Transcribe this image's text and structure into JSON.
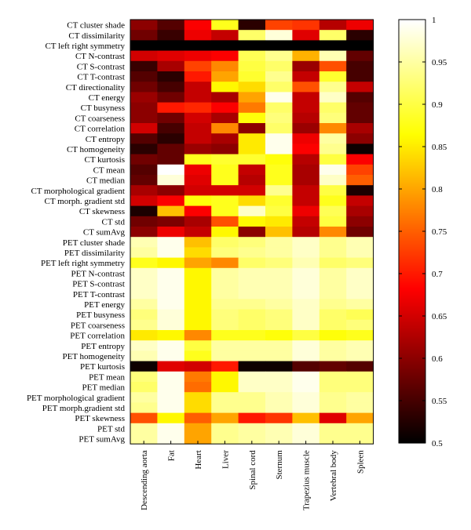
{
  "chart_data": {
    "type": "heatmap",
    "colormap": "hot",
    "colorbar": {
      "min": 0.5,
      "max": 1,
      "ticks": [
        "0.5",
        "0.55",
        "0.6",
        "0.65",
        "0.7",
        "0.75",
        "0.8",
        "0.85",
        "0.9",
        "0.95",
        "1"
      ]
    },
    "columns": [
      "Descending aorta",
      "Fat",
      "Heart",
      "Liver",
      "Spinal cord",
      "Sternum",
      "Trapezius muscle",
      "Vertebral body",
      "Spleen"
    ],
    "rows": [
      "CT cluster shade",
      "CT dissimilarity",
      "CT left right symmetry",
      "CT N-contrast",
      "CT S-contrast",
      "CT T-contrast",
      "CT directionality",
      "CT energy",
      "CT busyness",
      "CT coarseness",
      "CT correlation",
      "CT entropy",
      "CT homogeneity",
      "CT kurtosis",
      "CT mean",
      "CT median",
      "CT morphological gradient",
      "CT morph. gradient std",
      "CT skewness",
      "CT std",
      "CT sumAvg",
      "PET cluster shade",
      "PET dissimilarity",
      "PET left right symmetry",
      "PET N-contrast",
      "PET S-contrast",
      "PET T-contrast",
      "PET energy",
      "PET busyness",
      "PET coarseness",
      "PET correlation",
      "PET entropy",
      "PET homogeneity",
      "PET kurtosis",
      "PET mean",
      "PET median",
      "PET morphological gradient",
      "PET morph.gradient std",
      "PET skewness",
      "PET std",
      "PET sumAvg"
    ],
    "values": [
      [
        0.6,
        0.56,
        0.68,
        0.88,
        0.53,
        0.73,
        0.72,
        0.63,
        0.67
      ],
      [
        0.58,
        0.54,
        0.67,
        0.64,
        0.92,
        0.98,
        0.66,
        0.92,
        0.53
      ],
      [
        0.5,
        0.5,
        0.5,
        0.5,
        0.5,
        0.5,
        0.5,
        0.5,
        0.5
      ],
      [
        0.65,
        0.66,
        0.67,
        0.68,
        0.91,
        0.94,
        0.81,
        0.96,
        0.57
      ],
      [
        0.54,
        0.62,
        0.73,
        0.78,
        0.9,
        0.92,
        0.61,
        0.74,
        0.55
      ],
      [
        0.56,
        0.53,
        0.7,
        0.8,
        0.89,
        0.94,
        0.64,
        0.89,
        0.55
      ],
      [
        0.58,
        0.55,
        0.64,
        0.86,
        0.84,
        0.92,
        0.74,
        0.94,
        0.64
      ],
      [
        0.61,
        0.58,
        0.64,
        0.62,
        0.8,
        0.99,
        0.64,
        0.97,
        0.56
      ],
      [
        0.6,
        0.7,
        0.71,
        0.68,
        0.77,
        0.92,
        0.64,
        0.92,
        0.57
      ],
      [
        0.6,
        0.58,
        0.65,
        0.62,
        0.87,
        0.93,
        0.63,
        0.93,
        0.57
      ],
      [
        0.65,
        0.55,
        0.64,
        0.78,
        0.6,
        0.92,
        0.61,
        0.78,
        0.62
      ],
      [
        0.56,
        0.53,
        0.64,
        0.62,
        0.85,
        0.99,
        0.67,
        0.95,
        0.6
      ],
      [
        0.53,
        0.57,
        0.61,
        0.6,
        0.85,
        0.99,
        0.68,
        0.94,
        0.51
      ],
      [
        0.58,
        0.57,
        0.88,
        0.89,
        0.89,
        0.87,
        0.63,
        0.9,
        0.68
      ],
      [
        0.56,
        1.0,
        0.67,
        0.88,
        0.64,
        0.88,
        0.62,
        0.99,
        0.73
      ],
      [
        0.57,
        0.98,
        0.66,
        0.88,
        0.63,
        0.88,
        0.62,
        0.97,
        0.75
      ],
      [
        0.62,
        0.6,
        0.65,
        0.65,
        0.65,
        0.94,
        0.64,
        0.9,
        0.52
      ],
      [
        0.65,
        0.68,
        0.87,
        0.88,
        0.84,
        0.89,
        0.64,
        0.88,
        0.64
      ],
      [
        0.52,
        0.82,
        0.68,
        0.88,
        0.97,
        0.9,
        0.67,
        0.91,
        0.62
      ],
      [
        0.58,
        0.59,
        0.62,
        0.74,
        0.86,
        0.85,
        0.64,
        0.9,
        0.6
      ],
      [
        0.6,
        0.67,
        0.64,
        0.86,
        0.6,
        0.82,
        0.63,
        0.78,
        0.58
      ],
      [
        0.96,
        0.99,
        0.82,
        0.92,
        0.93,
        0.95,
        0.97,
        0.94,
        0.96
      ],
      [
        0.95,
        0.99,
        0.84,
        0.93,
        0.94,
        0.95,
        0.97,
        0.94,
        0.96
      ],
      [
        0.88,
        0.86,
        0.8,
        0.78,
        0.92,
        0.93,
        0.96,
        0.92,
        0.93
      ],
      [
        0.97,
        0.99,
        0.86,
        0.95,
        0.96,
        0.96,
        0.98,
        0.95,
        0.97
      ],
      [
        0.97,
        0.99,
        0.86,
        0.95,
        0.96,
        0.96,
        0.98,
        0.95,
        0.97
      ],
      [
        0.97,
        0.99,
        0.86,
        0.95,
        0.96,
        0.96,
        0.98,
        0.95,
        0.97
      ],
      [
        0.95,
        0.99,
        0.86,
        0.94,
        0.94,
        0.95,
        0.97,
        0.94,
        0.95
      ],
      [
        0.93,
        0.98,
        0.86,
        0.93,
        0.92,
        0.93,
        0.97,
        0.92,
        0.91
      ],
      [
        0.94,
        0.98,
        0.86,
        0.93,
        0.92,
        0.93,
        0.97,
        0.92,
        0.93
      ],
      [
        0.85,
        0.86,
        0.78,
        0.88,
        0.88,
        0.87,
        0.9,
        0.87,
        0.88
      ],
      [
        0.97,
        0.99,
        0.9,
        0.95,
        0.95,
        0.95,
        0.98,
        0.95,
        0.96
      ],
      [
        0.96,
        0.99,
        0.88,
        0.95,
        0.95,
        0.95,
        0.98,
        0.95,
        0.96
      ],
      [
        0.51,
        0.66,
        0.65,
        0.7,
        0.51,
        0.51,
        0.56,
        0.57,
        0.56
      ],
      [
        0.93,
        0.99,
        0.77,
        0.86,
        0.97,
        0.97,
        0.99,
        0.93,
        0.93
      ],
      [
        0.92,
        0.99,
        0.76,
        0.86,
        0.97,
        0.97,
        0.99,
        0.93,
        0.93
      ],
      [
        0.95,
        0.99,
        0.84,
        0.94,
        0.94,
        0.96,
        0.98,
        0.94,
        0.95
      ],
      [
        0.94,
        0.99,
        0.84,
        0.94,
        0.94,
        0.96,
        0.98,
        0.94,
        0.95
      ],
      [
        0.74,
        0.86,
        0.75,
        0.8,
        0.7,
        0.72,
        0.82,
        0.66,
        0.8
      ],
      [
        0.95,
        0.99,
        0.8,
        0.94,
        0.95,
        0.96,
        0.98,
        0.94,
        0.94
      ],
      [
        0.95,
        0.99,
        0.8,
        0.94,
        0.95,
        0.96,
        0.98,
        0.94,
        0.94
      ]
    ]
  }
}
